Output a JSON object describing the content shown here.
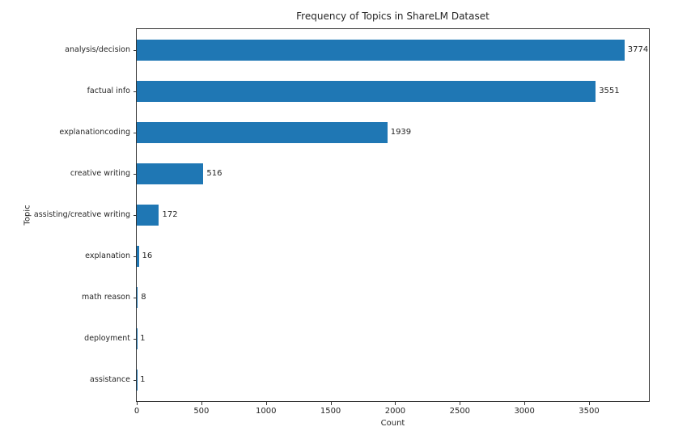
{
  "chart_data": {
    "type": "bar",
    "orientation": "horizontal",
    "title": "Frequency of Topics in ShareLM Dataset",
    "xlabel": "Count",
    "ylabel": "Topic",
    "categories": [
      "analysis/decision",
      "factual info",
      "explanationcoding",
      "creative writing",
      "assisting/creative writing",
      "explanation",
      "math reason",
      "deployment",
      "assistance"
    ],
    "values": [
      3774,
      3551,
      1939,
      516,
      172,
      16,
      8,
      1,
      1
    ],
    "value_labels": [
      "3774",
      "3551",
      "1939",
      "516",
      "172",
      "16",
      "8",
      "1",
      "1"
    ],
    "xticks": [
      0,
      500,
      1000,
      1500,
      2000,
      2500,
      3000,
      3500
    ],
    "xlim": [
      0,
      3963
    ],
    "grid": false,
    "legend": null,
    "bar_color": "#1f77b4",
    "axis_color": "#333333",
    "text_color": "#262626",
    "background_color": "#ffffff"
  }
}
